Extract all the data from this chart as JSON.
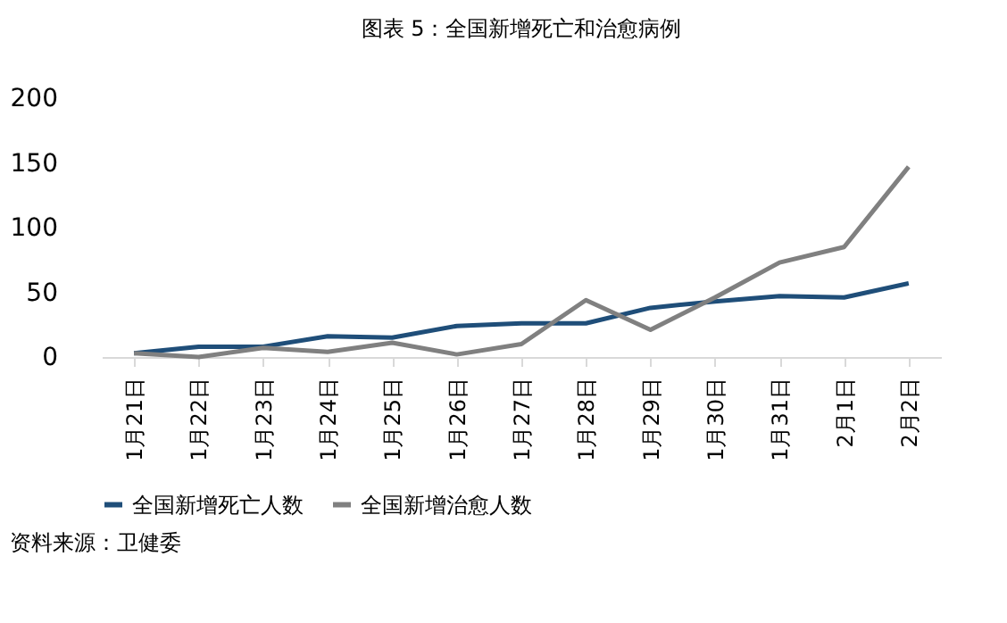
{
  "chart_data": {
    "type": "line",
    "title": "图表 5：全国新增死亡和治愈病例",
    "categories": [
      "1月21日",
      "1月22日",
      "1月23日",
      "1月24日",
      "1月25日",
      "1月26日",
      "1月27日",
      "1月28日",
      "1月29日",
      "1月30日",
      "1月31日",
      "2月1日",
      "2月2日"
    ],
    "series": [
      {
        "name": "全国新增死亡人数",
        "color": "#1f4e79",
        "values": [
          3,
          8,
          8,
          16,
          15,
          24,
          26,
          26,
          38,
          43,
          47,
          46,
          57
        ]
      },
      {
        "name": "全国新增治愈人数",
        "color": "#808080",
        "values": [
          3,
          0,
          7,
          4,
          11,
          2,
          10,
          44,
          21,
          46,
          73,
          85,
          147
        ]
      }
    ],
    "ylim": [
      0,
      200
    ],
    "yticks": [
      0,
      50,
      100,
      150,
      200
    ],
    "grid": false,
    "legend": "bottom",
    "marker": "none",
    "line_style": "solid",
    "annotations": [
      "资料来源：卫健委"
    ]
  }
}
